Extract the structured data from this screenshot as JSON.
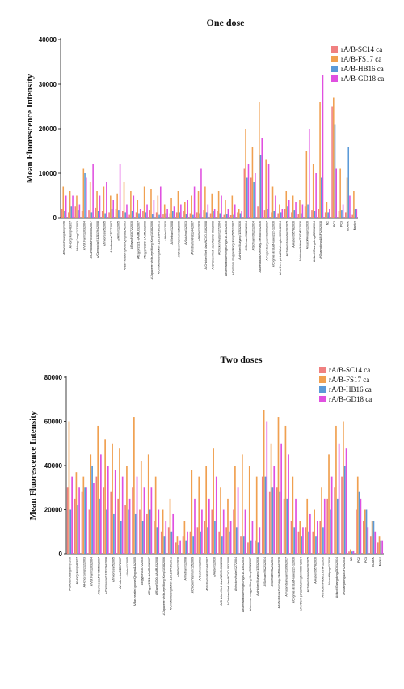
{
  "chart_data": [
    {
      "type": "bar",
      "title": "One dose",
      "xlabel": "",
      "ylabel": "Mean Fluorescence Intensity",
      "ylim": [
        0,
        40000
      ],
      "yticks": [
        "0",
        "10000",
        "20000",
        "30000",
        "40000"
      ],
      "grid": false,
      "legend_position": "top-right",
      "colors": [
        "#f08080",
        "#f0a050",
        "#5a9ad8",
        "#e050e0"
      ],
      "categories": [
        "A/Goose/Guangdong/1/96",
        "A/Hong Kong/483/97",
        "A/Hong Kong/212/2003",
        "A/Viet Nam/1203/2004",
        "A/Cambodia/R0405050/2007",
        "A/Cambodia/S1211394/2008",
        "A/Indonesia/5/2005",
        "A/Indonesia/CDC7/2007",
        "A/Anhui/1/2005",
        "A/Bar-headed goose/Qinghai/1A/2005",
        "A/Egypt/N03072/2010",
        "A/Egypt/2321-NAMRU3/2007",
        "A/Egypt/3300-NAMRU3/2008",
        "A/Japanese white-eye/Hong Kong/1038/2006",
        "A/Chicken/Bangladesh/11rs1984-30/2011",
        "A/Hubei/1/2010",
        "A/Vietnam/1/2008",
        "A/Chicken/Yunnan/115/2009",
        "A/Guizhou/1/2013",
        "A/Vietnam/HN31244/2007",
        "A/Hubei/1/2010",
        "A/Chicken/Viet Nam/NCVD-016/2008",
        "A/Chicken/Viet Nam/NCVD-093/2008",
        "A/chicken/Hubei/327/2004",
        "A/Barnswallow/Hong Kong/D10-1161/2010",
        "A/common magpie/Hong Kong/5052/2007",
        "A/chicken/Guiyang/1153/2016",
        "A/Sichuan/26221/2014",
        "A/Sichuan/26221/2014",
        "A/tufted duck/Germany-SH/R8444/2016",
        "A/Fujian-Sanyuan/21099/2017",
        "A/Cygnus atratus/Hubei/222-1/2016",
        "A/northern pintail/Washington/40964/2014",
        "A/chicken/Iowa/04-20/2015",
        "A/Hubei/29578/2016",
        "A/chicken/Hubei/ZYSYF1/2016",
        "A/duck/Hyogo/1/2016",
        "A/duck/Guangdong/GD01/2014",
        "A/Guangdong/18SF020/2018",
        "NC",
        "PC2",
        "PC3",
        "BLANK",
        "Marker"
      ],
      "series": [
        {
          "name": "rA/B-SC14 ca",
          "color": "#f08080",
          "values": [
            2000,
            1200,
            2500,
            1500,
            1800,
            2200,
            1500,
            1200,
            2000,
            1500,
            800,
            1200,
            1500,
            1800,
            1200,
            900,
            1000,
            1200,
            1500,
            1000,
            1200,
            1800,
            1000,
            1500,
            800,
            600,
            1200,
            11000,
            9000,
            2500,
            1800,
            1200,
            1000,
            2000,
            1200,
            900,
            2500,
            1800,
            2000,
            1200,
            25000,
            1500,
            1200,
            800
          ]
        },
        {
          "name": "rA/B-FS17 ca",
          "color": "#f0a050",
          "values": [
            7000,
            6000,
            5000,
            11000,
            8000,
            6000,
            7000,
            5000,
            5500,
            8000,
            6000,
            4000,
            7000,
            6500,
            5000,
            3000,
            4500,
            6000,
            3500,
            5000,
            6000,
            7000,
            5500,
            6000,
            4000,
            5000,
            2000,
            20000,
            16000,
            26000,
            13000,
            7000,
            3000,
            6000,
            5000,
            4000,
            15000,
            12000,
            26000,
            3500,
            27000,
            11000,
            9000,
            6000
          ]
        },
        {
          "name": "rA/B-HB16 ca",
          "color": "#5a9ad8",
          "values": [
            1500,
            2500,
            1800,
            10000,
            1200,
            1500,
            1000,
            2000,
            1800,
            1200,
            1500,
            1000,
            1200,
            900,
            800,
            1000,
            1500,
            1200,
            900,
            800,
            1000,
            1200,
            1500,
            1000,
            900,
            800,
            1000,
            9000,
            8000,
            14000,
            2000,
            1500,
            1200,
            2500,
            1800,
            1000,
            3000,
            1500,
            9000,
            1200,
            21000,
            1800,
            16000,
            2000
          ]
        },
        {
          "name": "rA/B-GD18 ca",
          "color": "#e050e0",
          "values": [
            5000,
            5000,
            3000,
            9000,
            12000,
            5000,
            8000,
            4000,
            12000,
            3000,
            5000,
            2000,
            3000,
            4000,
            7000,
            2000,
            2500,
            3000,
            4000,
            7000,
            11000,
            3000,
            2000,
            5000,
            2000,
            3000,
            1500,
            12000,
            10000,
            18000,
            12000,
            5000,
            2000,
            4000,
            3500,
            3000,
            20000,
            10000,
            32000,
            2000,
            11000,
            3000,
            5000,
            2000
          ]
        }
      ]
    },
    {
      "type": "bar",
      "title": "Two doses",
      "xlabel": "",
      "ylabel": "Mean Fluorescence Intensity",
      "ylim": [
        0,
        80000
      ],
      "yticks": [
        "0",
        "20000",
        "40000",
        "60000",
        "80000"
      ],
      "grid": false,
      "legend_position": "top-right",
      "colors": [
        "#f08080",
        "#f0a050",
        "#5a9ad8",
        "#e050e0"
      ],
      "categories": [
        "A/Goose/Guangdong/1/96",
        "A/Hong Kong/483/97",
        "A/Hong Kong/212/2003",
        "A/Viet Nam/1203/2004",
        "A/Cambodia/R0405050/2007",
        "A/Cambodia/S1211394/2008",
        "A/Indonesia/5/2005",
        "A/Indonesia/CDC7/2007",
        "A/Anhui/1/2005",
        "A/Bar-headed goose/Qinghai/1A/2005",
        "A/Egypt/N03072/2010",
        "A/Egypt/2321-NAMRU3/2007",
        "A/Egypt/3300-NAMRU3/2008",
        "A/Japanese white-eye/Hong Kong/1038/2006",
        "A/Chicken/Bangladesh/11rs1984-30/2011",
        "A/Hubei/1/2010",
        "A/Vietnam/1/2008",
        "A/Chicken/Yunnan/115/2009",
        "A/Guizhou/1/2013",
        "A/Vietnam/HN31244/2007",
        "A/Hubei/1/2010",
        "A/Chicken/Viet Nam/NCVD-016/2008",
        "A/Chicken/Viet Nam/NCVD-093/2008",
        "A/chicken/Hubei/327/2004",
        "A/Barnswallow/Hong Kong/D10-1161/2010",
        "A/common magpie/Hong Kong/5052/2007",
        "A/chicken/Guiyang/1153/2016",
        "A/Sichuan/26221/2014",
        "A/Sichuan/26221/2014",
        "A/tufted duck/Germany-SH/R8444/2016",
        "A/Fujian-Sanyuan/21099/2017",
        "A/Cygnus atratus/Hubei/222-1/2016",
        "A/northern pintail/Washington/40964/2014",
        "A/chicken/Iowa/04-20/2015",
        "A/Hubei/29578/2016",
        "A/chicken/Hubei/ZYSYF1/2016",
        "A/duck/Hyogo/1/2016",
        "A/duck/Guangdong/GD01/2014",
        "A/Guangdong/18SF020/2018",
        "NC",
        "PC2",
        "PC3",
        "BLANK",
        "Marker"
      ],
      "series": [
        {
          "name": "rA/B-SC14 ca",
          "color": "#f08080",
          "values": [
            30000,
            25000,
            28000,
            20000,
            35000,
            30000,
            28000,
            25000,
            22000,
            30000,
            20000,
            18000,
            15000,
            10000,
            12000,
            5000,
            8000,
            10000,
            12000,
            15000,
            20000,
            10000,
            12000,
            20000,
            8000,
            5000,
            6000,
            35000,
            28000,
            30000,
            25000,
            15000,
            10000,
            12000,
            10000,
            15000,
            25000,
            30000,
            35000,
            1000,
            20000,
            15000,
            8000,
            5000
          ]
        },
        {
          "name": "rA/B-FS17 ca",
          "color": "#f0a050",
          "values": [
            60000,
            37000,
            35000,
            45000,
            58000,
            52000,
            50000,
            48000,
            40000,
            62000,
            42000,
            45000,
            35000,
            20000,
            25000,
            8000,
            15000,
            38000,
            35000,
            40000,
            48000,
            30000,
            25000,
            40000,
            45000,
            40000,
            35000,
            65000,
            50000,
            62000,
            58000,
            35000,
            15000,
            25000,
            20000,
            30000,
            45000,
            58000,
            60000,
            2000,
            35000,
            20000,
            15000,
            8000
          ]
        },
        {
          "name": "rA/B-HB16 ca",
          "color": "#5a9ad8",
          "values": [
            20000,
            22000,
            30000,
            40000,
            25000,
            20000,
            18000,
            15000,
            20000,
            18000,
            15000,
            20000,
            12000,
            8000,
            10000,
            4000,
            6000,
            8000,
            10000,
            12000,
            15000,
            8000,
            10000,
            12000,
            8000,
            6000,
            5000,
            35000,
            30000,
            28000,
            25000,
            12000,
            8000,
            10000,
            8000,
            12000,
            20000,
            25000,
            40000,
            1000,
            28000,
            20000,
            15000,
            6000
          ]
        },
        {
          "name": "rA/B-GD18 ca",
          "color": "#e050e0",
          "values": [
            35000,
            30000,
            30000,
            32000,
            45000,
            40000,
            38000,
            35000,
            25000,
            35000,
            30000,
            30000,
            20000,
            15000,
            18000,
            6000,
            10000,
            25000,
            20000,
            25000,
            35000,
            20000,
            15000,
            30000,
            20000,
            15000,
            12000,
            60000,
            40000,
            50000,
            45000,
            25000,
            12000,
            18000,
            15000,
            25000,
            35000,
            50000,
            48000,
            1500,
            25000,
            12000,
            10000,
            6000
          ]
        }
      ]
    }
  ]
}
